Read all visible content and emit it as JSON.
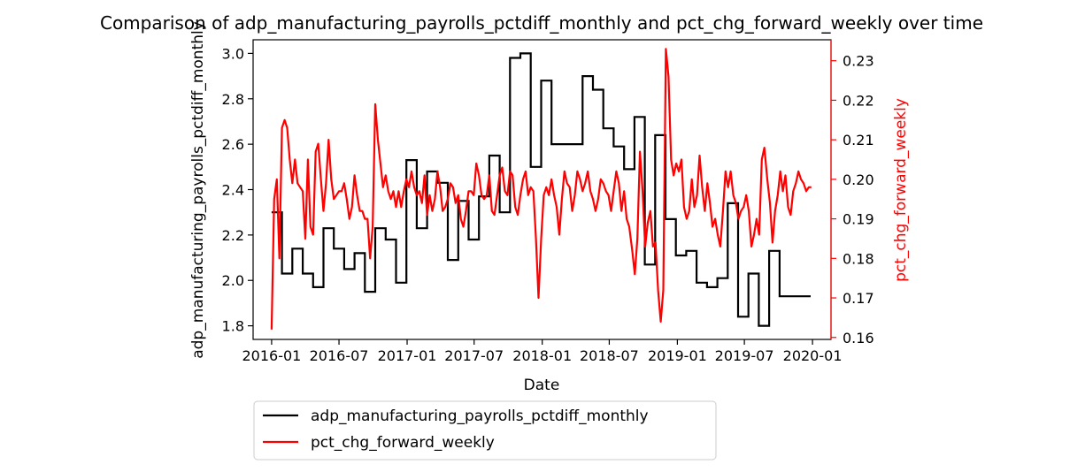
{
  "chart_data": {
    "type": "line",
    "title": "Comparison of adp_manufacturing_payrolls_pctdiff_monthly and pct_chg_forward_weekly over time",
    "xlabel": "Date",
    "ylabel": "adp_manufacturing_payrolls_pctdiff_monthly",
    "y2label": "pct_chg_forward_weekly",
    "x_ticks": [
      "2016-01",
      "2016-07",
      "2017-01",
      "2017-07",
      "2018-01",
      "2018-07",
      "2019-01",
      "2019-07",
      "2020-01"
    ],
    "y_ticks": [
      "1.8",
      "2.0",
      "2.2",
      "2.4",
      "2.6",
      "2.8",
      "3.0"
    ],
    "y2_ticks": [
      "0.16",
      "0.17",
      "0.18",
      "0.19",
      "0.20",
      "0.21",
      "0.22",
      "0.23"
    ],
    "ylim": [
      1.74,
      3.06
    ],
    "y2lim": [
      0.1595,
      0.2353
    ],
    "xlim": [
      "2015-11-12",
      "2020-02-20"
    ],
    "legend_position": "below-left",
    "colors": {
      "series1": "#000000",
      "series2": "#ff0000",
      "axis2": "#ff0000"
    },
    "series": [
      {
        "name": "adp_manufacturing_payrolls_pctdiff_monthly",
        "color": "#000000",
        "step": true,
        "points": [
          [
            "2016-01-01",
            2.3
          ],
          [
            "2016-01-29",
            2.03
          ],
          [
            "2016-02-26",
            2.14
          ],
          [
            "2016-03-25",
            2.03
          ],
          [
            "2016-04-22",
            1.97
          ],
          [
            "2016-05-20",
            2.23
          ],
          [
            "2016-06-17",
            2.14
          ],
          [
            "2016-07-15",
            2.05
          ],
          [
            "2016-08-12",
            2.12
          ],
          [
            "2016-09-09",
            1.95
          ],
          [
            "2016-10-07",
            2.23
          ],
          [
            "2016-11-04",
            2.18
          ],
          [
            "2016-12-02",
            1.99
          ],
          [
            "2016-12-30",
            2.53
          ],
          [
            "2017-01-27",
            2.23
          ],
          [
            "2017-02-24",
            2.48
          ],
          [
            "2017-03-24",
            2.43
          ],
          [
            "2017-04-21",
            2.09
          ],
          [
            "2017-05-19",
            2.35
          ],
          [
            "2017-06-16",
            2.18
          ],
          [
            "2017-07-14",
            2.37
          ],
          [
            "2017-08-11",
            2.55
          ],
          [
            "2017-09-08",
            2.3
          ],
          [
            "2017-10-06",
            2.98
          ],
          [
            "2017-11-03",
            3.0
          ],
          [
            "2017-12-01",
            2.5
          ],
          [
            "2017-12-29",
            2.88
          ],
          [
            "2018-01-26",
            2.6
          ],
          [
            "2018-02-23",
            2.6
          ],
          [
            "2018-03-23",
            2.6
          ],
          [
            "2018-04-20",
            2.9
          ],
          [
            "2018-05-18",
            2.84
          ],
          [
            "2018-06-15",
            2.67
          ],
          [
            "2018-07-13",
            2.59
          ],
          [
            "2018-08-10",
            2.49
          ],
          [
            "2018-09-07",
            2.72
          ],
          [
            "2018-10-05",
            2.07
          ],
          [
            "2018-11-02",
            2.64
          ],
          [
            "2018-11-30",
            2.27
          ],
          [
            "2018-12-28",
            2.11
          ],
          [
            "2019-01-25",
            2.13
          ],
          [
            "2019-02-22",
            1.99
          ],
          [
            "2019-03-22",
            1.97
          ],
          [
            "2019-04-19",
            2.01
          ],
          [
            "2019-05-17",
            2.34
          ],
          [
            "2019-06-14",
            1.84
          ],
          [
            "2019-07-12",
            2.03
          ],
          [
            "2019-08-09",
            1.8
          ],
          [
            "2019-09-06",
            2.13
          ],
          [
            "2019-10-04",
            1.93
          ],
          [
            "2019-11-01",
            1.93
          ],
          [
            "2019-12-27",
            1.93
          ]
        ]
      },
      {
        "name": "pct_chg_forward_weekly",
        "color": "#ff0000",
        "step": false,
        "points": [
          [
            "2016-01-01",
            0.162
          ],
          [
            "2016-01-08",
            0.195
          ],
          [
            "2016-01-15",
            0.2
          ],
          [
            "2016-01-22",
            0.18
          ],
          [
            "2016-01-29",
            0.213
          ],
          [
            "2016-02-05",
            0.215
          ],
          [
            "2016-02-12",
            0.213
          ],
          [
            "2016-02-19",
            0.205
          ],
          [
            "2016-02-26",
            0.199
          ],
          [
            "2016-03-04",
            0.205
          ],
          [
            "2016-03-11",
            0.199
          ],
          [
            "2016-03-18",
            0.198
          ],
          [
            "2016-03-25",
            0.197
          ],
          [
            "2016-04-01",
            0.185
          ],
          [
            "2016-04-08",
            0.205
          ],
          [
            "2016-04-15",
            0.188
          ],
          [
            "2016-04-22",
            0.186
          ],
          [
            "2016-04-29",
            0.207
          ],
          [
            "2016-05-06",
            0.209
          ],
          [
            "2016-05-13",
            0.2
          ],
          [
            "2016-05-20",
            0.192
          ],
          [
            "2016-05-27",
            0.199
          ],
          [
            "2016-06-03",
            0.21
          ],
          [
            "2016-06-10",
            0.2
          ],
          [
            "2016-06-17",
            0.195
          ],
          [
            "2016-06-24",
            0.196
          ],
          [
            "2016-07-01",
            0.197
          ],
          [
            "2016-07-08",
            0.197
          ],
          [
            "2016-07-15",
            0.199
          ],
          [
            "2016-07-22",
            0.195
          ],
          [
            "2016-07-29",
            0.19
          ],
          [
            "2016-08-05",
            0.193
          ],
          [
            "2016-08-12",
            0.201
          ],
          [
            "2016-08-19",
            0.196
          ],
          [
            "2016-08-26",
            0.192
          ],
          [
            "2016-09-02",
            0.192
          ],
          [
            "2016-09-09",
            0.19
          ],
          [
            "2016-09-16",
            0.19
          ],
          [
            "2016-09-23",
            0.18
          ],
          [
            "2016-09-30",
            0.188
          ],
          [
            "2016-10-07",
            0.219
          ],
          [
            "2016-10-14",
            0.21
          ],
          [
            "2016-10-21",
            0.204
          ],
          [
            "2016-10-28",
            0.198
          ],
          [
            "2016-11-04",
            0.201
          ],
          [
            "2016-11-11",
            0.197
          ],
          [
            "2016-11-18",
            0.195
          ],
          [
            "2016-11-25",
            0.197
          ],
          [
            "2016-12-02",
            0.193
          ],
          [
            "2016-12-09",
            0.197
          ],
          [
            "2016-12-16",
            0.193
          ],
          [
            "2016-12-23",
            0.197
          ],
          [
            "2016-12-30",
            0.2
          ],
          [
            "2017-01-06",
            0.198
          ],
          [
            "2017-01-13",
            0.202
          ],
          [
            "2017-01-20",
            0.198
          ],
          [
            "2017-01-27",
            0.196
          ],
          [
            "2017-02-03",
            0.197
          ],
          [
            "2017-02-10",
            0.194
          ],
          [
            "2017-02-17",
            0.201
          ],
          [
            "2017-02-24",
            0.191
          ],
          [
            "2017-03-03",
            0.196
          ],
          [
            "2017-03-10",
            0.192
          ],
          [
            "2017-03-17",
            0.195
          ],
          [
            "2017-03-24",
            0.202
          ],
          [
            "2017-03-31",
            0.198
          ],
          [
            "2017-04-07",
            0.192
          ],
          [
            "2017-04-14",
            0.193
          ],
          [
            "2017-04-21",
            0.195
          ],
          [
            "2017-04-28",
            0.199
          ],
          [
            "2017-05-05",
            0.198
          ],
          [
            "2017-05-12",
            0.194
          ],
          [
            "2017-05-19",
            0.196
          ],
          [
            "2017-05-26",
            0.19
          ],
          [
            "2017-06-02",
            0.188
          ],
          [
            "2017-06-09",
            0.192
          ],
          [
            "2017-06-16",
            0.197
          ],
          [
            "2017-06-23",
            0.197
          ],
          [
            "2017-06-30",
            0.196
          ],
          [
            "2017-07-07",
            0.204
          ],
          [
            "2017-07-14",
            0.201
          ],
          [
            "2017-07-21",
            0.196
          ],
          [
            "2017-07-28",
            0.195
          ],
          [
            "2017-08-04",
            0.196
          ],
          [
            "2017-08-11",
            0.201
          ],
          [
            "2017-08-18",
            0.192
          ],
          [
            "2017-08-25",
            0.191
          ],
          [
            "2017-09-01",
            0.196
          ],
          [
            "2017-09-08",
            0.201
          ],
          [
            "2017-09-15",
            0.203
          ],
          [
            "2017-09-22",
            0.197
          ],
          [
            "2017-09-29",
            0.196
          ],
          [
            "2017-10-06",
            0.202
          ],
          [
            "2017-10-13",
            0.201
          ],
          [
            "2017-10-20",
            0.193
          ],
          [
            "2017-10-27",
            0.191
          ],
          [
            "2017-11-03",
            0.196
          ],
          [
            "2017-11-10",
            0.2
          ],
          [
            "2017-11-17",
            0.202
          ],
          [
            "2017-11-24",
            0.196
          ],
          [
            "2017-12-01",
            0.198
          ],
          [
            "2017-12-08",
            0.197
          ],
          [
            "2017-12-15",
            0.185
          ],
          [
            "2017-12-22",
            0.17
          ],
          [
            "2017-12-29",
            0.185
          ],
          [
            "2018-01-05",
            0.196
          ],
          [
            "2018-01-12",
            0.198
          ],
          [
            "2018-01-19",
            0.196
          ],
          [
            "2018-01-26",
            0.2
          ],
          [
            "2018-02-02",
            0.196
          ],
          [
            "2018-02-09",
            0.193
          ],
          [
            "2018-02-16",
            0.186
          ],
          [
            "2018-02-23",
            0.195
          ],
          [
            "2018-03-02",
            0.202
          ],
          [
            "2018-03-09",
            0.199
          ],
          [
            "2018-03-16",
            0.198
          ],
          [
            "2018-03-23",
            0.192
          ],
          [
            "2018-03-30",
            0.196
          ],
          [
            "2018-04-06",
            0.202
          ],
          [
            "2018-04-13",
            0.2
          ],
          [
            "2018-04-20",
            0.197
          ],
          [
            "2018-04-27",
            0.199
          ],
          [
            "2018-05-04",
            0.202
          ],
          [
            "2018-05-11",
            0.197
          ],
          [
            "2018-05-18",
            0.195
          ],
          [
            "2018-05-25",
            0.192
          ],
          [
            "2018-06-01",
            0.195
          ],
          [
            "2018-06-08",
            0.2
          ],
          [
            "2018-06-15",
            0.199
          ],
          [
            "2018-06-22",
            0.197
          ],
          [
            "2018-06-29",
            0.196
          ],
          [
            "2018-07-06",
            0.192
          ],
          [
            "2018-07-13",
            0.197
          ],
          [
            "2018-07-20",
            0.202
          ],
          [
            "2018-07-27",
            0.199
          ],
          [
            "2018-08-03",
            0.192
          ],
          [
            "2018-08-10",
            0.197
          ],
          [
            "2018-08-17",
            0.19
          ],
          [
            "2018-08-24",
            0.188
          ],
          [
            "2018-09-01",
            0.182
          ],
          [
            "2018-09-08",
            0.176
          ],
          [
            "2018-09-15",
            0.185
          ],
          [
            "2018-09-22",
            0.207
          ],
          [
            "2018-09-29",
            0.197
          ],
          [
            "2018-10-06",
            0.183
          ],
          [
            "2018-10-13",
            0.189
          ],
          [
            "2018-10-20",
            0.192
          ],
          [
            "2018-10-27",
            0.183
          ],
          [
            "2018-11-03",
            0.184
          ],
          [
            "2018-11-10",
            0.172
          ],
          [
            "2018-11-17",
            0.164
          ],
          [
            "2018-11-24",
            0.172
          ],
          [
            "2018-12-01",
            0.233
          ],
          [
            "2018-12-08",
            0.226
          ],
          [
            "2018-12-15",
            0.205
          ],
          [
            "2018-12-22",
            0.201
          ],
          [
            "2018-12-29",
            0.204
          ],
          [
            "2019-01-05",
            0.202
          ],
          [
            "2019-01-12",
            0.205
          ],
          [
            "2019-01-19",
            0.193
          ],
          [
            "2019-01-26",
            0.19
          ],
          [
            "2019-02-02",
            0.192
          ],
          [
            "2019-02-09",
            0.2
          ],
          [
            "2019-02-16",
            0.193
          ],
          [
            "2019-02-23",
            0.196
          ],
          [
            "2019-03-02",
            0.206
          ],
          [
            "2019-03-09",
            0.198
          ],
          [
            "2019-03-16",
            0.192
          ],
          [
            "2019-03-23",
            0.199
          ],
          [
            "2019-03-30",
            0.194
          ],
          [
            "2019-04-06",
            0.188
          ],
          [
            "2019-04-13",
            0.19
          ],
          [
            "2019-04-20",
            0.186
          ],
          [
            "2019-04-27",
            0.183
          ],
          [
            "2019-05-04",
            0.192
          ],
          [
            "2019-05-11",
            0.202
          ],
          [
            "2019-05-18",
            0.198
          ],
          [
            "2019-05-25",
            0.202
          ],
          [
            "2019-06-01",
            0.196
          ],
          [
            "2019-06-08",
            0.194
          ],
          [
            "2019-06-15",
            0.19
          ],
          [
            "2019-06-22",
            0.192
          ],
          [
            "2019-06-29",
            0.193
          ],
          [
            "2019-07-06",
            0.196
          ],
          [
            "2019-07-13",
            0.192
          ],
          [
            "2019-07-20",
            0.183
          ],
          [
            "2019-07-27",
            0.186
          ],
          [
            "2019-08-03",
            0.19
          ],
          [
            "2019-08-10",
            0.186
          ],
          [
            "2019-08-17",
            0.205
          ],
          [
            "2019-08-24",
            0.208
          ],
          [
            "2019-09-01",
            0.2
          ],
          [
            "2019-09-08",
            0.194
          ],
          [
            "2019-09-15",
            0.184
          ],
          [
            "2019-09-22",
            0.192
          ],
          [
            "2019-09-29",
            0.196
          ],
          [
            "2019-10-06",
            0.202
          ],
          [
            "2019-10-13",
            0.197
          ],
          [
            "2019-10-20",
            0.201
          ],
          [
            "2019-10-27",
            0.193
          ],
          [
            "2019-11-03",
            0.191
          ],
          [
            "2019-11-10",
            0.197
          ],
          [
            "2019-11-17",
            0.199
          ],
          [
            "2019-11-24",
            0.202
          ],
          [
            "2019-12-01",
            0.2
          ],
          [
            "2019-12-08",
            0.199
          ],
          [
            "2019-12-15",
            0.197
          ],
          [
            "2019-12-22",
            0.198
          ],
          [
            "2019-12-29",
            0.198
          ]
        ]
      }
    ]
  }
}
